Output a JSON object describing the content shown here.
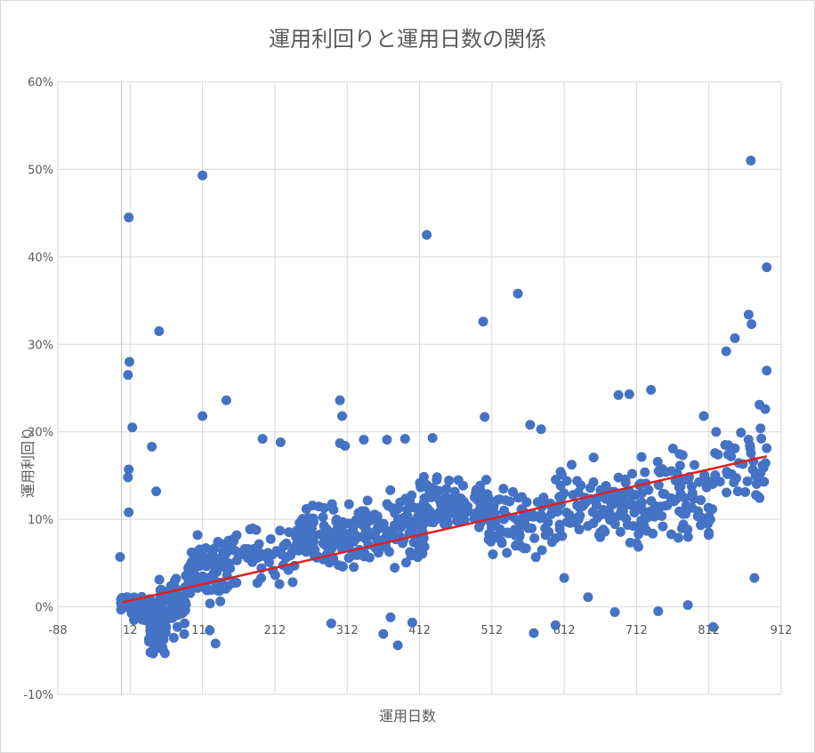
{
  "chart_data": {
    "type": "scatter",
    "title": "運用利回りと運用日数の関係",
    "xlabel": "運用日数",
    "ylabel": "運用利回り",
    "xlim": [
      -88,
      912
    ],
    "ylim": [
      -0.1,
      0.6
    ],
    "x_ticks": [
      "-88",
      "12",
      "112",
      "212",
      "312",
      "412",
      "512",
      "612",
      "712",
      "812",
      "912"
    ],
    "y_ticks": [
      "-10%",
      "0%",
      "10%",
      "20%",
      "30%",
      "40%",
      "50%",
      "60%"
    ],
    "grid": true,
    "marker_color": "#4472c4",
    "trendline": {
      "color": "#e21f1f",
      "x": [
        1,
        892
      ],
      "y": [
        0.005,
        0.172
      ]
    },
    "notable_points": [
      {
        "x": 112,
        "y": 0.493
      },
      {
        "x": 10,
        "y": 0.445
      },
      {
        "x": 422,
        "y": 0.425
      },
      {
        "x": 52,
        "y": 0.315
      },
      {
        "x": 11,
        "y": 0.28
      },
      {
        "x": 9,
        "y": 0.265
      },
      {
        "x": 15,
        "y": 0.205
      },
      {
        "x": 112,
        "y": 0.218
      },
      {
        "x": 145,
        "y": 0.236
      },
      {
        "x": 548,
        "y": 0.358
      },
      {
        "x": 500,
        "y": 0.326
      },
      {
        "x": 870,
        "y": 0.51
      },
      {
        "x": 892,
        "y": 0.388
      },
      {
        "x": 867,
        "y": 0.334
      },
      {
        "x": 871,
        "y": 0.323
      },
      {
        "x": 848,
        "y": 0.307
      },
      {
        "x": 836,
        "y": 0.292
      },
      {
        "x": 892,
        "y": 0.27
      },
      {
        "x": 687,
        "y": 0.242
      },
      {
        "x": 702,
        "y": 0.243
      },
      {
        "x": 732,
        "y": 0.248
      },
      {
        "x": 302,
        "y": 0.236
      },
      {
        "x": 305,
        "y": 0.218
      },
      {
        "x": 502,
        "y": 0.217
      },
      {
        "x": 42,
        "y": 0.183
      },
      {
        "x": 10,
        "y": 0.157
      },
      {
        "x": 9,
        "y": 0.148
      },
      {
        "x": 48,
        "y": 0.132
      },
      {
        "x": 10,
        "y": 0.108
      },
      {
        "x": -2,
        "y": 0.057
      },
      {
        "x": 40,
        "y": -0.052
      },
      {
        "x": 60,
        "y": -0.053
      },
      {
        "x": 130,
        "y": -0.042
      },
      {
        "x": 122,
        "y": -0.027
      },
      {
        "x": 382,
        "y": -0.044
      },
      {
        "x": 362,
        "y": -0.031
      },
      {
        "x": 372,
        "y": -0.012
      },
      {
        "x": 402,
        "y": -0.018
      },
      {
        "x": 290,
        "y": -0.019
      },
      {
        "x": 570,
        "y": -0.03
      },
      {
        "x": 600,
        "y": -0.021
      },
      {
        "x": 682,
        "y": -0.006
      },
      {
        "x": 742,
        "y": -0.005
      },
      {
        "x": 818,
        "y": -0.023
      },
      {
        "x": 783,
        "y": 0.002
      },
      {
        "x": 875,
        "y": 0.033
      },
      {
        "x": 612,
        "y": 0.033
      },
      {
        "x": 645,
        "y": 0.011
      },
      {
        "x": 430,
        "y": 0.193
      },
      {
        "x": 335,
        "y": 0.191
      },
      {
        "x": 367,
        "y": 0.191
      },
      {
        "x": 392,
        "y": 0.192
      },
      {
        "x": 195,
        "y": 0.192
      },
      {
        "x": 220,
        "y": 0.188
      },
      {
        "x": 302,
        "y": 0.187
      },
      {
        "x": 309,
        "y": 0.184
      },
      {
        "x": 580,
        "y": 0.203
      },
      {
        "x": 565,
        "y": 0.208
      },
      {
        "x": 848,
        "y": 0.181
      },
      {
        "x": 822,
        "y": 0.2
      },
      {
        "x": 805,
        "y": 0.218
      },
      {
        "x": 890,
        "y": 0.226
      },
      {
        "x": 882,
        "y": 0.231
      }
    ],
    "clusters": [
      {
        "x_min": -2,
        "x_max": 12,
        "y_center": 0.004,
        "y_spread": 0.006,
        "count": 45
      },
      {
        "x_min": 8,
        "x_max": 40,
        "y_center": -0.002,
        "y_spread": 0.012,
        "count": 45
      },
      {
        "x_min": 38,
        "x_max": 62,
        "y_center": -0.025,
        "y_spread": 0.022,
        "count": 90
      },
      {
        "x_min": 52,
        "x_max": 90,
        "y_center": 0.005,
        "y_spread": 0.03,
        "count": 70
      },
      {
        "x_min": 90,
        "x_max": 150,
        "y_center": 0.045,
        "y_spread": 0.03,
        "count": 90
      },
      {
        "x_min": 140,
        "x_max": 250,
        "y_center": 0.06,
        "y_spread": 0.028,
        "count": 60
      },
      {
        "x_min": 240,
        "x_max": 330,
        "y_center": 0.08,
        "y_spread": 0.03,
        "count": 110
      },
      {
        "x_min": 330,
        "x_max": 420,
        "y_center": 0.085,
        "y_spread": 0.035,
        "count": 110
      },
      {
        "x_min": 410,
        "x_max": 510,
        "y_center": 0.115,
        "y_spread": 0.028,
        "count": 120
      },
      {
        "x_min": 505,
        "x_max": 600,
        "y_center": 0.095,
        "y_spread": 0.035,
        "count": 80
      },
      {
        "x_min": 600,
        "x_max": 700,
        "y_center": 0.115,
        "y_spread": 0.04,
        "count": 90
      },
      {
        "x_min": 700,
        "x_max": 820,
        "y_center": 0.12,
        "y_spread": 0.045,
        "count": 110
      },
      {
        "x_min": 820,
        "x_max": 892,
        "y_center": 0.165,
        "y_spread": 0.04,
        "count": 40
      }
    ]
  }
}
